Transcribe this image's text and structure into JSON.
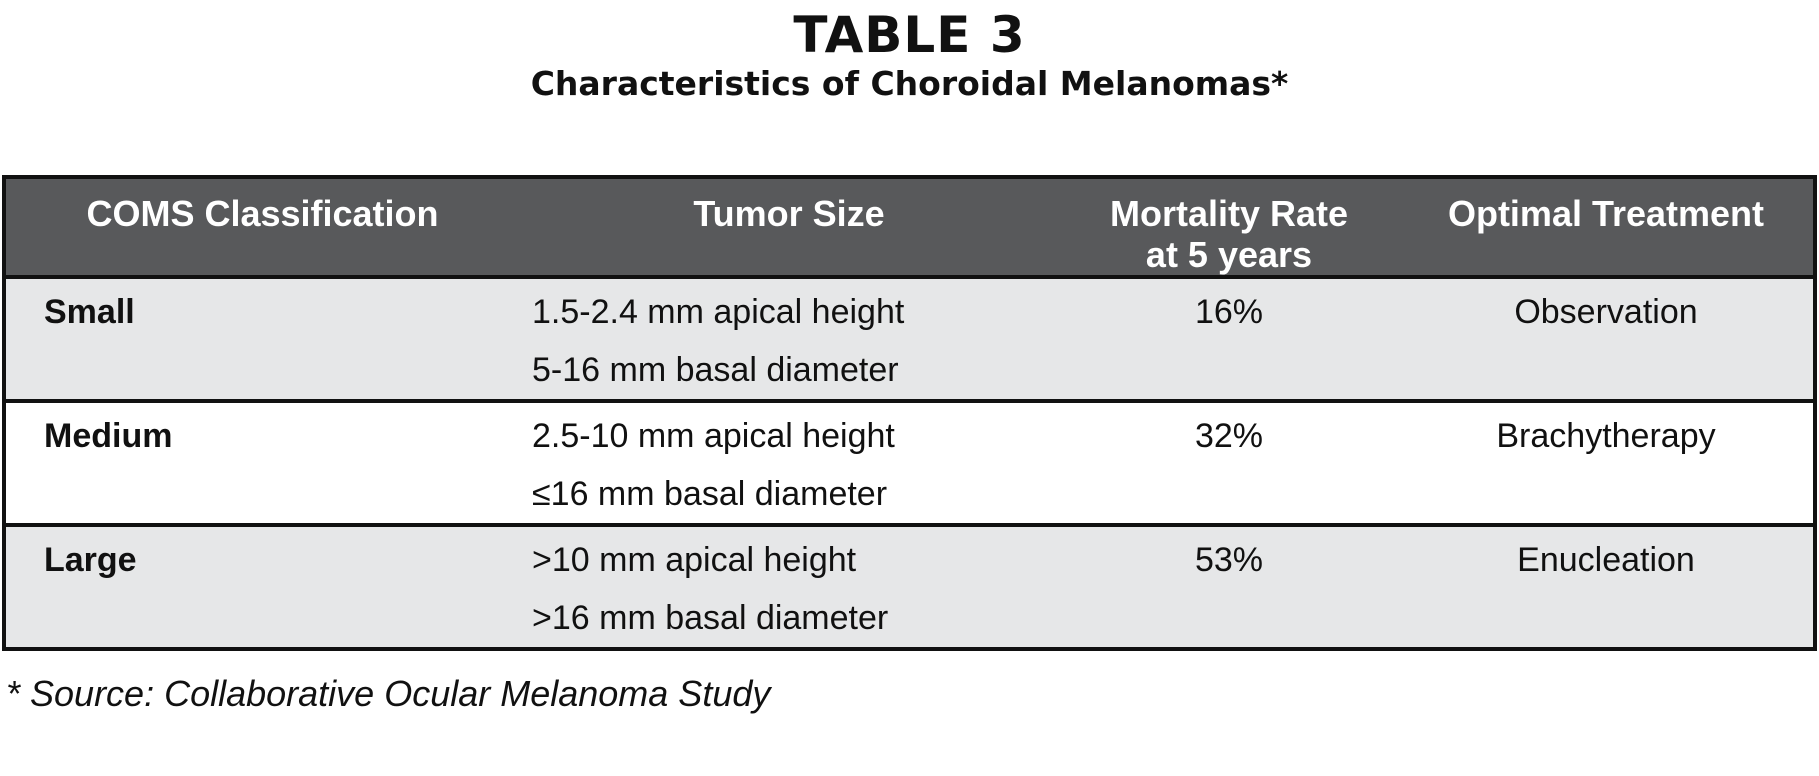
{
  "title": "TABLE 3",
  "subtitle": "Characteristics of Choroidal Melanomas*",
  "table": {
    "headers": {
      "classification": "COMS Classification",
      "tumor_size": "Tumor Size",
      "mortality_line1": "Mortality Rate",
      "mortality_line2": "at 5 years",
      "treatment": "Optimal Treatment"
    },
    "rows": [
      {
        "classification": "Small",
        "size_line1": "1.5-2.4 mm apical height",
        "size_line2": "5-16 mm basal diameter",
        "mortality": "16%",
        "treatment": "Observation"
      },
      {
        "classification": "Medium",
        "size_line1": "2.5-10 mm apical height",
        "size_line2": "≤16 mm basal diameter",
        "mortality": "32%",
        "treatment": "Brachytherapy"
      },
      {
        "classification": "Large",
        "size_line1": ">10 mm apical height",
        "size_line2": ">16 mm basal diameter",
        "mortality": "53%",
        "treatment": "Enucleation"
      }
    ]
  },
  "footnote": "* Source: Collaborative Ocular Melanoma Study",
  "colors": {
    "header_background": "#58595b",
    "shaded_row": "#e6e7e8",
    "border": "#111111"
  }
}
